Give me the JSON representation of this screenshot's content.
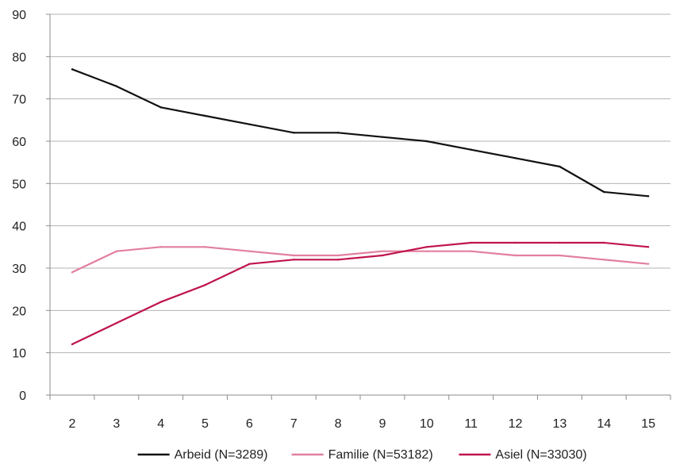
{
  "chart_data": {
    "type": "line",
    "title": "",
    "xlabel": "",
    "ylabel": "",
    "x": [
      2,
      3,
      4,
      5,
      6,
      7,
      8,
      9,
      10,
      11,
      12,
      13,
      14,
      15
    ],
    "ylim": [
      0,
      90
    ],
    "yticks": [
      0,
      10,
      20,
      30,
      40,
      50,
      60,
      70,
      80,
      90
    ],
    "grid": "horizontal",
    "legend_position": "bottom",
    "series": [
      {
        "name": "Arbeid (N=3289)",
        "color": "#111111",
        "values": [
          77,
          73,
          68,
          66,
          64,
          62,
          62,
          61,
          60,
          58,
          56,
          54,
          48,
          47
        ]
      },
      {
        "name": "Familie (N=53182)",
        "color": "#e27f9f",
        "values": [
          29,
          34,
          35,
          35,
          34,
          33,
          33,
          34,
          34,
          34,
          33,
          33,
          32,
          31
        ]
      },
      {
        "name": "Asiel (N=33030)",
        "color": "#c0144b",
        "values": [
          12,
          17,
          22,
          26,
          31,
          32,
          32,
          33,
          35,
          36,
          36,
          36,
          36,
          35
        ]
      }
    ]
  }
}
